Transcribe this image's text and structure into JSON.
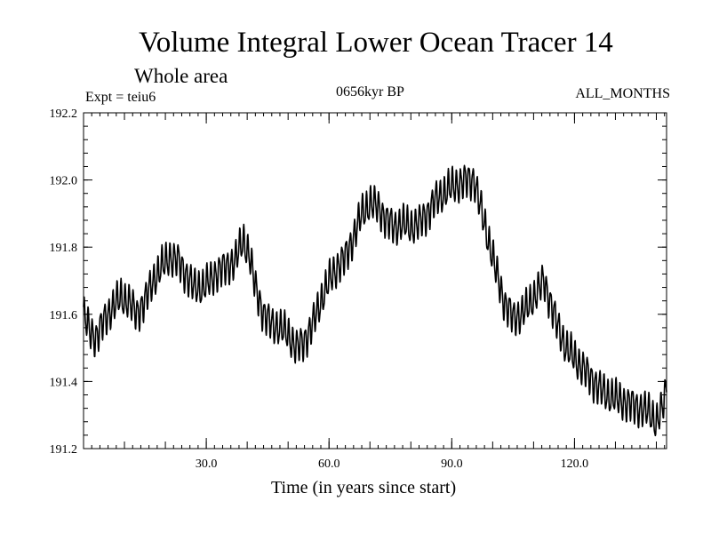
{
  "chart_data": {
    "type": "line",
    "title": "Volume Integral Lower Ocean Tracer 14",
    "subtitle": "Whole area",
    "experiment_label": "Expt = teiu6",
    "period_label": "0656kyr BP",
    "months_label": "ALL_MONTHS",
    "xlabel": "Time (in years since start)",
    "ylabel": "",
    "xlim": [
      0,
      142.5
    ],
    "ylim": [
      191.2,
      192.2
    ],
    "xticks": [
      30,
      60,
      90,
      120
    ],
    "xtick_labels": [
      "30.0",
      "60.0",
      "90.0",
      "120.0"
    ],
    "yticks": [
      191.2,
      191.4,
      191.6,
      191.8,
      192.0,
      192.2
    ],
    "ytick_labels": [
      "191.2",
      "191.4",
      "191.6",
      "191.8",
      "192.0",
      "192.2"
    ],
    "grid": false,
    "series": [
      {
        "name": "Volume Integral Lower Ocean Tracer 14",
        "seasonal_amplitude": 0.045,
        "trend_x": [
          0,
          1.5,
          3,
          5,
          7,
          9,
          11,
          13,
          15,
          17,
          19,
          21,
          23,
          25,
          27,
          29,
          31,
          33,
          35,
          37,
          39,
          40.5,
          42,
          44,
          46,
          48,
          50,
          52,
          54,
          56,
          58,
          60,
          62,
          64,
          66,
          68,
          70,
          72,
          74,
          76,
          78,
          80,
          82,
          84,
          86,
          88,
          90,
          92,
          94,
          95.5,
          97,
          99,
          101,
          103,
          105,
          107,
          109,
          111,
          112.5,
          114,
          116,
          118,
          120,
          122,
          124,
          126,
          128,
          130,
          132,
          134,
          136,
          138,
          140,
          141.5,
          142.5
        ],
        "trend_y": [
          191.6,
          191.55,
          191.53,
          191.58,
          191.62,
          191.65,
          191.64,
          191.6,
          191.64,
          191.7,
          191.74,
          191.77,
          191.76,
          191.72,
          191.68,
          191.68,
          191.7,
          191.73,
          191.74,
          191.76,
          191.82,
          191.78,
          191.68,
          191.6,
          191.57,
          191.56,
          191.54,
          191.5,
          191.52,
          191.57,
          191.64,
          191.7,
          191.74,
          191.77,
          191.83,
          191.9,
          191.93,
          191.92,
          191.88,
          191.86,
          191.87,
          191.86,
          191.87,
          191.9,
          191.94,
          191.96,
          191.98,
          191.99,
          192.0,
          192.0,
          191.92,
          191.82,
          191.72,
          191.63,
          191.59,
          191.6,
          191.63,
          191.67,
          191.7,
          191.64,
          191.56,
          191.5,
          191.47,
          191.44,
          191.41,
          191.38,
          191.36,
          191.35,
          191.34,
          191.33,
          191.32,
          191.31,
          191.28,
          191.32,
          191.38
        ]
      }
    ]
  }
}
